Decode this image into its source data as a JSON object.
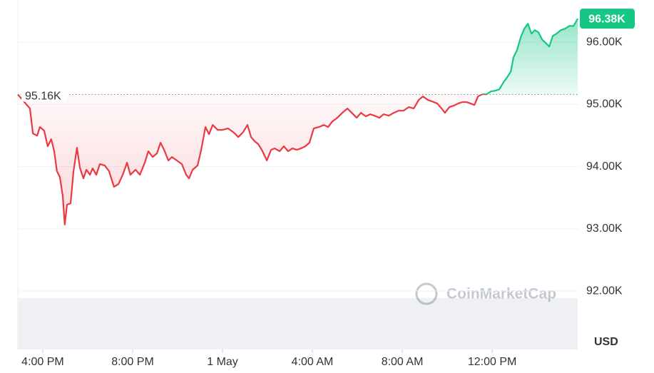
{
  "chart_data": {
    "type": "line",
    "x": [
      -1.11,
      -0.57,
      -0.44,
      -0.25,
      -0.13,
      0.06,
      0.22,
      0.38,
      0.51,
      0.63,
      0.76,
      0.89,
      0.98,
      1.08,
      1.24,
      1.37,
      1.52,
      1.65,
      1.81,
      1.94,
      2.1,
      2.22,
      2.38,
      2.54,
      2.76,
      2.95,
      3.17,
      3.37,
      3.56,
      3.75,
      3.9,
      4.13,
      4.32,
      4.54,
      4.7,
      4.89,
      5.08,
      5.24,
      5.4,
      5.59,
      5.75,
      5.97,
      6.19,
      6.38,
      6.51,
      6.67,
      6.89,
      7.05,
      7.24,
      7.4,
      7.56,
      7.78,
      8.0,
      8.25,
      8.51,
      8.7,
      8.92,
      9.11,
      9.27,
      9.43,
      9.59,
      9.78,
      9.97,
      10.16,
      10.32,
      10.54,
      10.73,
      10.92,
      11.11,
      11.3,
      11.49,
      11.68,
      11.87,
      12.06,
      12.29,
      12.51,
      12.7,
      12.89,
      13.11,
      13.33,
      13.56,
      13.75,
      13.97,
      14.16,
      14.38,
      14.57,
      14.76,
      14.98,
      15.17,
      15.4,
      15.62,
      15.84,
      16.06,
      16.29,
      16.51,
      16.73,
      16.92,
      17.14,
      17.33,
      17.56,
      17.75,
      17.9,
      18.1,
      18.29,
      18.48,
      18.67,
      18.86,
      19.05,
      19.21,
      19.37,
      19.56,
      19.75,
      19.94,
      20.13,
      20.32,
      20.51,
      20.67,
      20.83,
      20.95,
      21.11,
      21.27,
      21.43,
      21.59,
      21.75,
      21.9,
      22.06,
      22.22,
      22.38,
      22.54,
      22.7,
      22.86,
      23.05,
      23.24,
      23.43,
      23.62,
      23.81
    ],
    "values": [
      95160,
      94935,
      94534,
      94499,
      94637,
      94580,
      94328,
      94442,
      94247,
      93927,
      93835,
      93526,
      93068,
      93388,
      93411,
      93927,
      94305,
      93984,
      93812,
      93950,
      93869,
      93972,
      93869,
      94041,
      94018,
      93927,
      93675,
      93720,
      93869,
      94064,
      93869,
      93950,
      93869,
      94064,
      94247,
      94156,
      94213,
      94385,
      94270,
      94098,
      94156,
      94098,
      94041,
      93869,
      93812,
      93950,
      94018,
      94270,
      94637,
      94522,
      94671,
      94591,
      94591,
      94614,
      94545,
      94476,
      94557,
      94671,
      94476,
      94408,
      94362,
      94247,
      94098,
      94270,
      94293,
      94247,
      94328,
      94247,
      94293,
      94270,
      94293,
      94328,
      94385,
      94614,
      94637,
      94671,
      94637,
      94728,
      94786,
      94866,
      94935,
      94866,
      94786,
      94866,
      94809,
      94843,
      94820,
      94786,
      94843,
      94820,
      94866,
      94900,
      94900,
      94958,
      94935,
      95072,
      95129,
      95072,
      95049,
      95015,
      94935,
      94866,
      94958,
      94980,
      95015,
      95038,
      95038,
      95015,
      94992,
      95129,
      95164,
      95164,
      95210,
      95221,
      95244,
      95359,
      95439,
      95530,
      95759,
      95874,
      96080,
      96218,
      96298,
      96137,
      96195,
      96160,
      96046,
      95989,
      95931,
      96103,
      96137,
      96195,
      96218,
      96263,
      96263,
      96380
    ],
    "xlim": [
      -1.11,
      23.87
    ],
    "xticks": [
      {
        "value": 0,
        "label": "4:00 PM"
      },
      {
        "value": 4,
        "label": "8:00 PM"
      },
      {
        "value": 8,
        "label": "1 May"
      },
      {
        "value": 12,
        "label": "4:00 AM"
      },
      {
        "value": 16,
        "label": "8:00 AM"
      },
      {
        "value": 20,
        "label": "12:00 PM"
      }
    ],
    "ylim": [
      91060,
      96680
    ],
    "yticks": [
      {
        "value": 92000,
        "label": "92.00K"
      },
      {
        "value": 93000,
        "label": "93.00K"
      },
      {
        "value": 94000,
        "label": "94.00K"
      },
      {
        "value": 95000,
        "label": "95.00K"
      },
      {
        "value": 96000,
        "label": "96.00K"
      }
    ],
    "grid": true,
    "baseline": {
      "value": 95160,
      "label": "95.16K"
    },
    "current_price": {
      "value": 96380,
      "label": "96.38K"
    },
    "up_color": "#16c784",
    "down_color": "#ea3943",
    "currency": "USD",
    "watermark": "CoinMarketCap"
  }
}
